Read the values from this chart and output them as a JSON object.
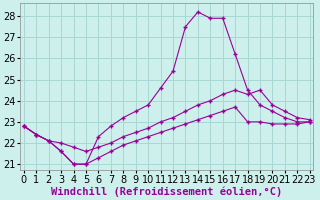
{
  "xlabel": "Windchill (Refroidissement éolien,°C)",
  "bg_color": "#cef0ec",
  "grid_color": "#a8d8d4",
  "line_color": "#990099",
  "xlim": [
    -0.3,
    23.3
  ],
  "ylim": [
    20.7,
    28.6
  ],
  "xticks": [
    0,
    1,
    2,
    3,
    4,
    5,
    6,
    7,
    8,
    9,
    10,
    11,
    12,
    13,
    14,
    15,
    16,
    17,
    18,
    19,
    20,
    21,
    22,
    23
  ],
  "yticks": [
    21,
    22,
    23,
    24,
    25,
    26,
    27,
    28
  ],
  "curve1_x": [
    0,
    1,
    2,
    3,
    4,
    5,
    6,
    7,
    8,
    9,
    10,
    11,
    12,
    13,
    14,
    15,
    16,
    17,
    18,
    19,
    20,
    21,
    22,
    23
  ],
  "curve1_y": [
    22.8,
    22.4,
    22.1,
    21.6,
    21.0,
    21.0,
    22.3,
    22.8,
    23.2,
    23.5,
    23.8,
    24.6,
    25.4,
    27.5,
    28.2,
    27.9,
    27.9,
    26.2,
    24.5,
    23.8,
    23.5,
    23.2,
    23.0,
    23.0
  ],
  "curve2_x": [
    0,
    1,
    2,
    3,
    4,
    5,
    6,
    7,
    8,
    9,
    10,
    11,
    12,
    13,
    14,
    15,
    16,
    17,
    18,
    19,
    20,
    21,
    22,
    23
  ],
  "curve2_y": [
    22.8,
    22.4,
    22.1,
    22.0,
    21.8,
    21.6,
    21.8,
    22.0,
    22.3,
    22.5,
    22.7,
    23.0,
    23.2,
    23.5,
    23.8,
    24.0,
    24.3,
    24.5,
    24.3,
    24.5,
    23.8,
    23.5,
    23.2,
    23.1
  ],
  "curve3_x": [
    0,
    1,
    2,
    3,
    4,
    5,
    6,
    7,
    8,
    9,
    10,
    11,
    12,
    13,
    14,
    15,
    16,
    17,
    18,
    19,
    20,
    21,
    22,
    23
  ],
  "curve3_y": [
    22.8,
    22.4,
    22.1,
    21.6,
    21.0,
    21.0,
    21.3,
    21.6,
    21.9,
    22.1,
    22.3,
    22.5,
    22.7,
    22.9,
    23.1,
    23.3,
    23.5,
    23.7,
    23.0,
    23.0,
    22.9,
    22.9,
    22.9,
    23.0
  ],
  "xlabel_fontsize": 7.5,
  "tick_fontsize": 7
}
